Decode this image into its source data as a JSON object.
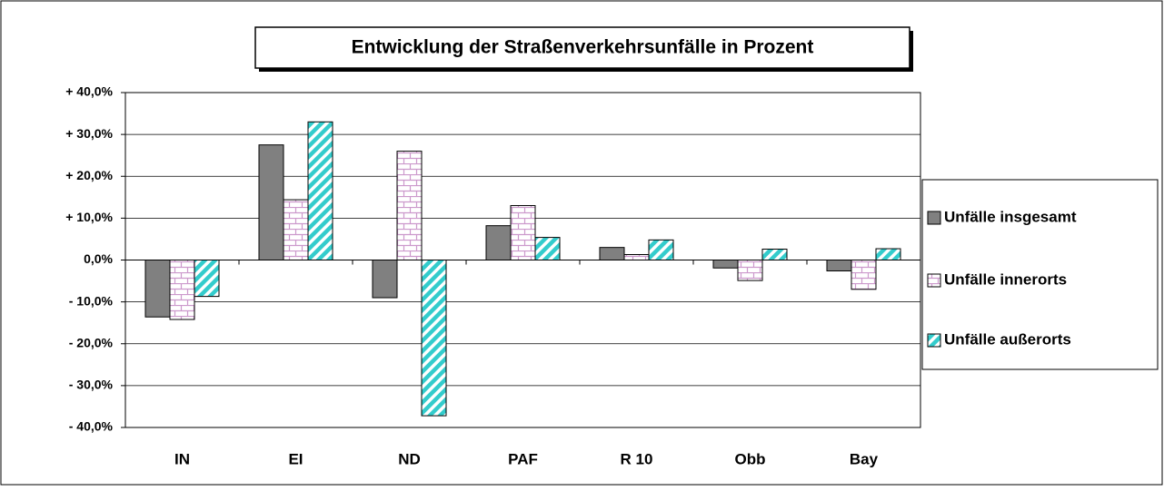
{
  "chart_data": {
    "type": "bar",
    "title": "Entwicklung der Straßenverkehrsunfälle in Prozent",
    "categories": [
      "IN",
      "EI",
      "ND",
      "PAF",
      "R 10",
      "Obb",
      "Bay"
    ],
    "series": [
      {
        "name": "Unfälle insgesamt",
        "color": "#808080",
        "values": [
          -13.6,
          27.5,
          -9.0,
          8.2,
          3.0,
          -1.9,
          -2.6
        ]
      },
      {
        "name": "Unfälle innerorts",
        "color": "#cc99cc",
        "values": [
          -14.2,
          14.4,
          26.0,
          13.0,
          1.3,
          -4.9,
          -7.0
        ]
      },
      {
        "name": "Unfälle außerorts",
        "color": "#33cccc",
        "values": [
          -8.7,
          33.0,
          -37.2,
          5.4,
          4.8,
          2.6,
          2.7
        ]
      }
    ],
    "ylim": [
      -40,
      40
    ],
    "yticks": [
      {
        "value": -40,
        "label": "- 40,0%"
      },
      {
        "value": -30,
        "label": "- 30,0%"
      },
      {
        "value": -20,
        "label": "- 20,0%"
      },
      {
        "value": -10,
        "label": "- 10,0%"
      },
      {
        "value": 0,
        "label": "0,0%"
      },
      {
        "value": 10,
        "label": "+ 10,0%"
      },
      {
        "value": 20,
        "label": "+ 20,0%"
      },
      {
        "value": 30,
        "label": "+ 30,0%"
      },
      {
        "value": 40,
        "label": "+ 40,0%"
      }
    ],
    "grid": true,
    "legend": "right"
  }
}
